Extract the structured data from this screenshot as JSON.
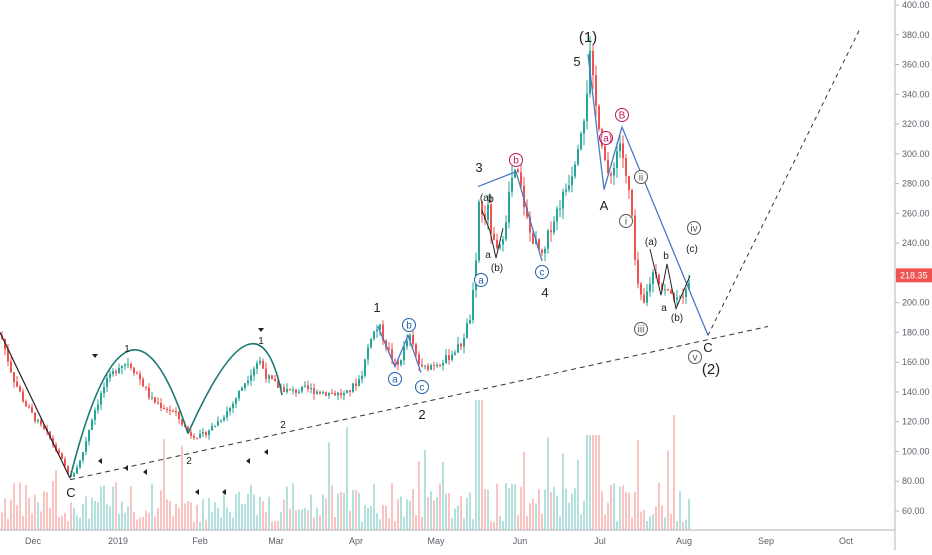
{
  "chart_data": {
    "type": "candlestick",
    "y_axis": {
      "position": "right",
      "ylim": [
        48,
        402
      ],
      "ticks": [
        "60.00",
        "80.00",
        "100.00",
        "120.00",
        "140.00",
        "160.00",
        "180.00",
        "200.00",
        "220.00",
        "240.00",
        "260.00",
        "280.00",
        "300.00",
        "320.00",
        "340.00",
        "360.00",
        "380.00",
        "400.00"
      ]
    },
    "x_axis": {
      "ticks": [
        "Dec",
        "2019",
        "Feb",
        "Mar",
        "Apr",
        "May",
        "Jun",
        "Jul",
        "Aug",
        "Sep",
        "Oct"
      ]
    },
    "last_price": "218.35",
    "colors": {
      "up": "#26a69a",
      "down": "#ef5350",
      "arc": "#1a7a72",
      "impulse_line": "#4a78c4",
      "wave_red": "#c2185b",
      "wave_blue": "#1f5fa8",
      "wave_gray": "#555555",
      "price_tag": "#ef5350"
    },
    "annotations": {
      "wave_1_top": "(1)",
      "wave_2_bottom": "(2)",
      "wave_5": "5",
      "wave_3": "3",
      "wave_4": "4",
      "wave_1": "1",
      "wave_2": "2",
      "wave_C_left": "C",
      "wave_A": "A",
      "wave_B": "B",
      "wave_C_right": "C",
      "cup_1a": "1",
      "cup_2a": "2",
      "cup_1b": "1",
      "cup_2b": "2",
      "roman_i": "i",
      "roman_ii": "ii",
      "roman_iii": "iii",
      "roman_iv": "iv",
      "roman_v": "v",
      "sub_a": "a",
      "sub_b": "b",
      "sub_c": "c",
      "paren_a": "(a)",
      "paren_b": "(b)",
      "paren_c": "(c)"
    }
  }
}
